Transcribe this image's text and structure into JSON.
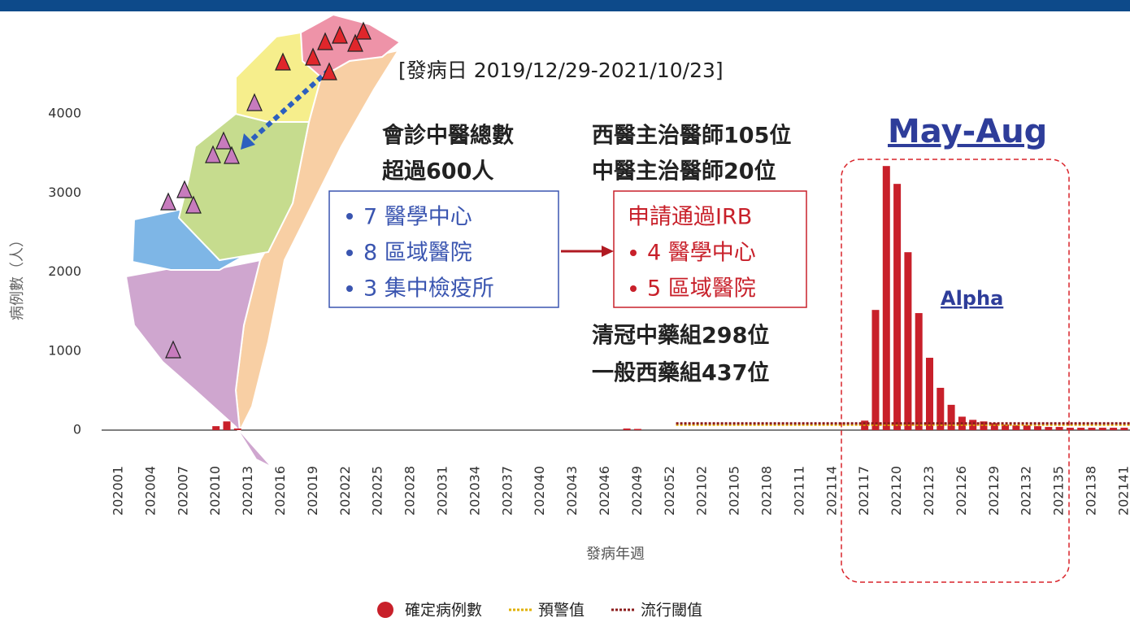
{
  "chart_data": {
    "type": "bar",
    "y_label": "病例數（人）",
    "x_label": "發病年週",
    "ylim": [
      0,
      4000
    ],
    "yticks": [
      0,
      1000,
      2000,
      3000,
      4000
    ],
    "grid": false,
    "categories": [
      "202001",
      null,
      null,
      "202004",
      null,
      null,
      "202007",
      null,
      null,
      "202010",
      null,
      null,
      "202013",
      null,
      null,
      "202016",
      null,
      null,
      "202019",
      null,
      null,
      "202022",
      null,
      null,
      "202025",
      null,
      null,
      "202028",
      null,
      null,
      "202031",
      null,
      null,
      "202034",
      null,
      null,
      "202037",
      null,
      null,
      "202040",
      null,
      null,
      "202043",
      null,
      null,
      "202046",
      null,
      null,
      "202049",
      null,
      null,
      "202052",
      null,
      null,
      "202102",
      null,
      null,
      "202105",
      null,
      null,
      "202108",
      null,
      null,
      "202111",
      null,
      null,
      "202114",
      null,
      null,
      "202117",
      null,
      null,
      "202120",
      null,
      null,
      "202123",
      null,
      null,
      "202126",
      null,
      null,
      "202129",
      null,
      null,
      "202132",
      null,
      null,
      "202135",
      null,
      null,
      "202138",
      null,
      null,
      "202141",
      null
    ],
    "series": [
      {
        "name": "確定病例數",
        "type": "bar",
        "color": "#c8202a",
        "values": [
          0,
          0,
          0,
          0,
          0,
          0,
          0,
          0,
          0,
          50,
          110,
          20,
          0,
          0,
          0,
          0,
          0,
          0,
          0,
          0,
          0,
          0,
          0,
          0,
          0,
          0,
          0,
          0,
          0,
          0,
          0,
          0,
          0,
          0,
          0,
          0,
          0,
          0,
          0,
          0,
          0,
          0,
          0,
          0,
          0,
          0,
          0,
          20,
          15,
          0,
          0,
          0,
          0,
          0,
          0,
          0,
          0,
          0,
          0,
          0,
          0,
          0,
          0,
          0,
          0,
          0,
          0,
          0,
          0,
          120,
          1520,
          3340,
          3114,
          2250,
          1480,
          915,
          535,
          320,
          170,
          130,
          110,
          90,
          70,
          60,
          60,
          50,
          40,
          40,
          30,
          30,
          30,
          30,
          30,
          30,
          30
        ]
      },
      {
        "name": "預警值",
        "type": "line",
        "color": "#e0b000",
        "values": [
          null,
          null,
          null,
          null,
          null,
          null,
          null,
          null,
          null,
          null,
          null,
          null,
          null,
          null,
          null,
          null,
          null,
          null,
          null,
          null,
          null,
          null,
          null,
          null,
          null,
          null,
          null,
          null,
          null,
          null,
          null,
          null,
          null,
          null,
          null,
          null,
          null,
          null,
          null,
          null,
          null,
          null,
          null,
          null,
          null,
          null,
          null,
          null,
          null,
          null,
          null,
          null,
          70,
          70,
          70,
          70,
          70,
          70,
          70,
          70,
          70,
          70,
          70,
          70,
          70,
          70,
          70,
          70,
          70,
          70,
          70,
          70,
          70,
          70,
          70,
          70,
          70,
          70,
          70,
          70,
          70,
          70,
          70,
          70,
          70,
          70,
          70,
          70,
          70,
          70,
          70,
          70,
          70,
          70,
          70
        ]
      },
      {
        "name": "流行閾值",
        "type": "line",
        "color": "#8b1a1a",
        "values": [
          null,
          null,
          null,
          null,
          null,
          null,
          null,
          null,
          null,
          null,
          null,
          null,
          null,
          null,
          null,
          null,
          null,
          null,
          null,
          null,
          null,
          null,
          null,
          null,
          null,
          null,
          null,
          null,
          null,
          null,
          null,
          null,
          null,
          null,
          null,
          null,
          null,
          null,
          null,
          null,
          null,
          null,
          null,
          null,
          null,
          null,
          null,
          null,
          null,
          null,
          null,
          null,
          85,
          85,
          85,
          85,
          85,
          85,
          85,
          85,
          85,
          85,
          85,
          85,
          85,
          85,
          85,
          85,
          85,
          85,
          85,
          85,
          85,
          85,
          85,
          85,
          85,
          85,
          85,
          85,
          85,
          85,
          85,
          85,
          85,
          85,
          85,
          85,
          85,
          85,
          85,
          85,
          85,
          85,
          85
        ]
      }
    ],
    "annotations": {
      "date_range": "[發病日 2019/12/29-2021/10/23]",
      "tcm_consult": [
        "會診中醫總數",
        "超過600人"
      ],
      "physicians": [
        "西醫主治醫師105位",
        "中醫主治醫師20位"
      ],
      "hospitals": [
        "7 醫學中心",
        "8 區域醫院",
        "3 集中檢疫所"
      ],
      "irb": [
        "申請通過IRB",
        "4 醫學中心",
        "5 區域醫院"
      ],
      "groups": [
        "清冠中藥組298位",
        "一般西藥組437位"
      ],
      "period": "May-Aug",
      "variant": "Alpha"
    }
  }
}
